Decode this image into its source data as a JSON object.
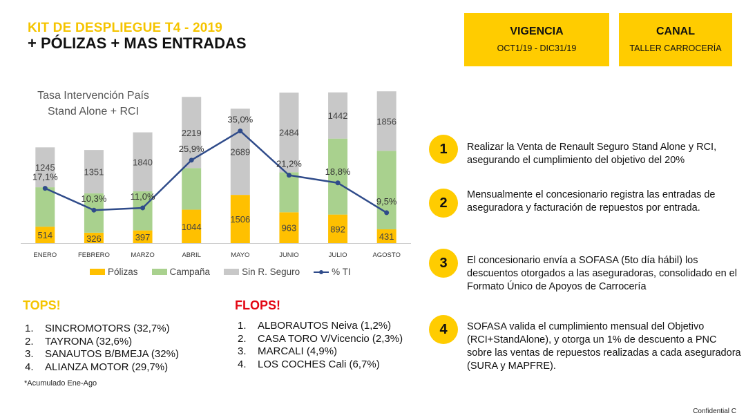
{
  "header": {
    "kit_title": "KIT DE DESPLIEGUE T4 - 2019",
    "subtitle": "+ PÓLIZAS + MAS ENTRADAS"
  },
  "boxes": {
    "vigencia": {
      "head": "VIGENCIA",
      "value": "OCT1/19 - DIC31/19"
    },
    "canal": {
      "head": "CANAL",
      "value": "TALLER CARROCERÍA"
    }
  },
  "colors": {
    "accent_yellow": "#ffcc00",
    "polizas": "#ffc000",
    "campana": "#a9d18e",
    "sin_seguro": "#c8c8c8",
    "ti_line": "#2f4b8a",
    "flops_red": "#e30613"
  },
  "chart_data": {
    "type": "bar",
    "title": "Tasa Intervención País",
    "subtitle": "Stand Alone + RCI",
    "categories": [
      "ENERO",
      "FEBRERO",
      "MARZO",
      "ABRIL",
      "MAYO",
      "JUNIO",
      "JULIO",
      "AGOSTO"
    ],
    "stacked": true,
    "series": [
      {
        "name": "Pólizas",
        "values": [
          514,
          326,
          397,
          1044,
          1506,
          963,
          892,
          431
        ]
      },
      {
        "name": "Campaña",
        "values": [
          1230,
          1230,
          1220,
          1300,
          0,
          1250,
          2370,
          2450
        ]
      },
      {
        "name": "Sin R. Seguro",
        "values": [
          1245,
          1351,
          1840,
          2219,
          2689,
          2484,
          1442,
          1856
        ]
      },
      {
        "name": "% TI",
        "type": "line",
        "values": [
          17.1,
          10.3,
          11.0,
          25.9,
          35.0,
          21.2,
          18.8,
          9.5
        ]
      }
    ],
    "bar_labels": {
      "Pólizas": [
        "514",
        "326",
        "397",
        "1044",
        "1506",
        "963",
        "892",
        "431"
      ],
      "Sin R. Seguro": [
        "1245",
        "1351",
        "1840",
        "2219",
        "2689",
        "2484",
        "1442",
        "1856"
      ]
    },
    "ti_labels": [
      "17,1%",
      "10,3%",
      "11,0%",
      "25,9%",
      "35,0%",
      "21,2%",
      "18,8%",
      "9,5%"
    ],
    "ylim": [
      0,
      5000
    ],
    "ti_ylim": [
      0,
      50
    ],
    "grid": false,
    "legend_position": "bottom"
  },
  "legend": [
    "Pólizas",
    "Campaña",
    "Sin R. Seguro",
    "% TI"
  ],
  "tops": {
    "title": "TOPS!",
    "items": [
      {
        "num": "1.",
        "text": "SINCROMOTORS (32,7%)"
      },
      {
        "num": "2.",
        "text": "TAYRONA (32,6%)"
      },
      {
        "num": "3.",
        "text": "SANAUTOS B/BMEJA (32%)"
      },
      {
        "num": "4.",
        "text": "ALIANZA MOTOR (29,7%)"
      }
    ],
    "footnote": "*Acumulado Ene-Ago"
  },
  "flops": {
    "title": "FLOPS!",
    "items": [
      {
        "num": "1.",
        "text": "ALBORAUTOS Neiva (1,2%)"
      },
      {
        "num": "2.",
        "text": "CASA TORO V/Vicencio (2,3%)"
      },
      {
        "num": "3.",
        "text": "MARCALI (4,9%)"
      },
      {
        "num": "4.",
        "text": "LOS COCHES Cali (6,7%)"
      }
    ]
  },
  "steps": [
    {
      "num": "1",
      "text": "Realizar la Venta de Renault Seguro Stand Alone y RCI, asegurando el cumplimiento del objetivo del 20%"
    },
    {
      "num": "2",
      "text": "Mensualmente el concesionario registra las entradas de aseguradora y facturación de repuestos por entrada."
    },
    {
      "num": "3",
      "text": "El concesionario envía a SOFASA (5to día hábil) los descuentos otorgados a las aseguradoras, consolidado en el Formato Único de Apoyos de Carrocería"
    },
    {
      "num": "4",
      "text": "SOFASA valida el cumplimiento mensual del Objetivo (RCI+StandAlone), y otorga un 1% de descuento a PNC sobre las ventas de repuestos realizadas a cada aseguradora (SURA y MAPFRE)."
    }
  ],
  "footer": {
    "confidential": "Confidential C"
  }
}
